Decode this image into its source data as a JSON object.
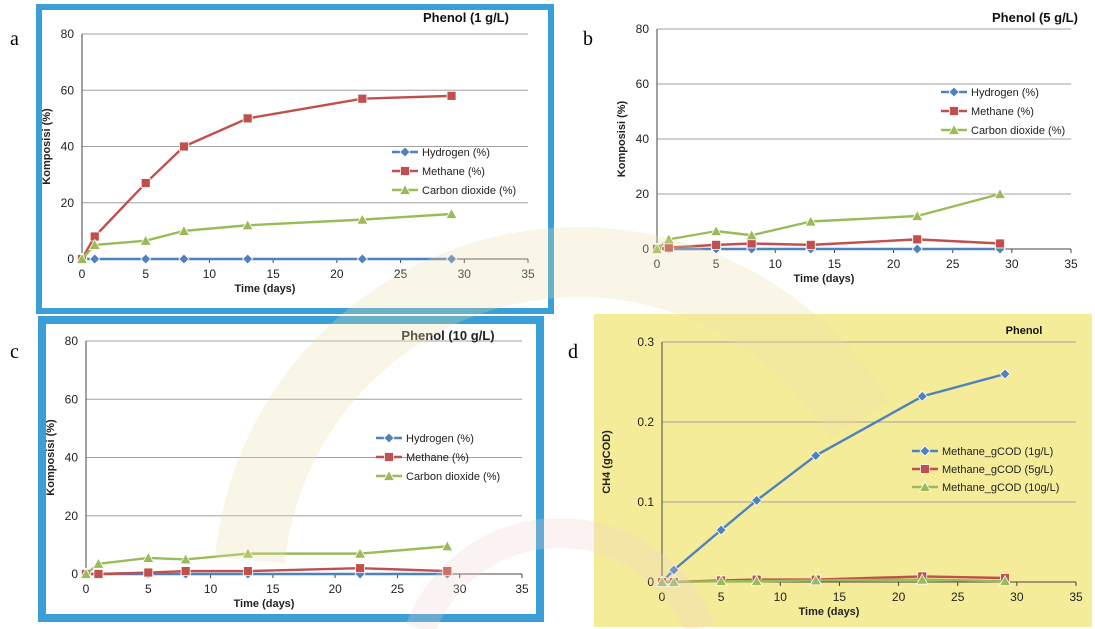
{
  "panel_letters": [
    "a",
    "b",
    "c",
    "d"
  ],
  "colors": {
    "frame_blue": "#3a9fd6",
    "frame_yellow": "#f5ec9a",
    "hydrogen": "#4f81bd",
    "methane": "#c0504d",
    "carbon_dioxide": "#9bbb59",
    "grid": "#a0a0a0"
  },
  "chart_data": [
    {
      "type": "line",
      "title": "Phenol (1 g/L)",
      "xlabel": "Time (days)",
      "ylabel": "Komposisi (%)",
      "xlim": [
        0,
        35
      ],
      "ylim": [
        0,
        80
      ],
      "xticks": [
        0,
        5,
        10,
        15,
        20,
        25,
        30,
        35
      ],
      "yticks": [
        0,
        20,
        40,
        60,
        80
      ],
      "grid": "horizontal",
      "legend_position": "center-right",
      "x": [
        0,
        1,
        5,
        8,
        13,
        22,
        29
      ],
      "series": [
        {
          "name": "Hydrogen (%)",
          "marker": "diamond",
          "values": [
            0,
            0,
            0,
            0,
            0,
            0,
            0
          ]
        },
        {
          "name": "Methane (%)",
          "marker": "square",
          "values": [
            0,
            8,
            27,
            40,
            50,
            57,
            58
          ]
        },
        {
          "name": "Carbon dioxide (%)",
          "marker": "triangle",
          "values": [
            0,
            5,
            6.5,
            10,
            12,
            14,
            16
          ]
        }
      ]
    },
    {
      "type": "line",
      "title": "Phenol (5 g/L)",
      "xlabel": "Time (days)",
      "ylabel": "Komposisi (%)",
      "xlim": [
        0,
        35
      ],
      "ylim": [
        0,
        80
      ],
      "xticks": [
        0,
        5,
        10,
        15,
        20,
        25,
        30,
        35
      ],
      "yticks": [
        0,
        20,
        40,
        60,
        80
      ],
      "grid": "horizontal",
      "legend_position": "center-right",
      "x": [
        0,
        1,
        5,
        8,
        13,
        22,
        29
      ],
      "series": [
        {
          "name": "Hydrogen (%)",
          "marker": "diamond",
          "values": [
            0,
            0,
            0,
            0,
            0,
            0,
            0
          ]
        },
        {
          "name": "Methane (%)",
          "marker": "square",
          "values": [
            0,
            0.5,
            1.5,
            2,
            1.5,
            3.5,
            2
          ]
        },
        {
          "name": "Carbon dioxide (%)",
          "marker": "triangle",
          "values": [
            0,
            3.5,
            6.5,
            5,
            10,
            12,
            20
          ]
        }
      ]
    },
    {
      "type": "line",
      "title": "Phenol (10 g/L)",
      "xlabel": "Time (days)",
      "ylabel": "Komposisi (%)",
      "xlim": [
        0,
        35
      ],
      "ylim": [
        0,
        80
      ],
      "xticks": [
        0,
        5,
        10,
        15,
        20,
        25,
        30,
        35
      ],
      "yticks": [
        0,
        20,
        40,
        60,
        80
      ],
      "grid": "horizontal",
      "legend_position": "center-right",
      "x": [
        0,
        1,
        5,
        8,
        13,
        22,
        29
      ],
      "series": [
        {
          "name": "Hydrogen (%)",
          "marker": "diamond",
          "values": [
            0,
            0,
            0,
            0,
            0,
            0,
            0
          ]
        },
        {
          "name": "Methane (%)",
          "marker": "square",
          "values": [
            0,
            0,
            0.5,
            1,
            1,
            2,
            1
          ]
        },
        {
          "name": "Carbon dioxide (%)",
          "marker": "triangle",
          "values": [
            0,
            3.5,
            5.5,
            5,
            7,
            7,
            9.5
          ]
        }
      ]
    },
    {
      "type": "line",
      "title": "Phenol",
      "xlabel": "Time (days)",
      "ylabel": "CH4 (gCOD)",
      "xlim": [
        0,
        35
      ],
      "ylim": [
        0,
        0.3
      ],
      "xticks": [
        0,
        5,
        10,
        15,
        20,
        25,
        30,
        35
      ],
      "yticks": [
        0,
        0.1,
        0.2,
        0.3
      ],
      "grid": "horizontal",
      "legend_position": "center-right",
      "x": [
        0,
        1,
        5,
        8,
        13,
        22,
        29
      ],
      "series": [
        {
          "name": "Methane_gCOD (1g/L)",
          "marker": "diamond",
          "values": [
            0,
            0.015,
            0.065,
            0.102,
            0.158,
            0.232,
            0.26
          ]
        },
        {
          "name": "Methane_gCOD (5g/L)",
          "marker": "square",
          "values": [
            0,
            0,
            0.002,
            0.003,
            0.003,
            0.007,
            0.005
          ]
        },
        {
          "name": "Methane_gCOD (10g/L)",
          "marker": "triangle",
          "values": [
            0,
            0,
            0.001,
            0.001,
            0.002,
            0.003,
            0.001
          ]
        }
      ]
    }
  ]
}
